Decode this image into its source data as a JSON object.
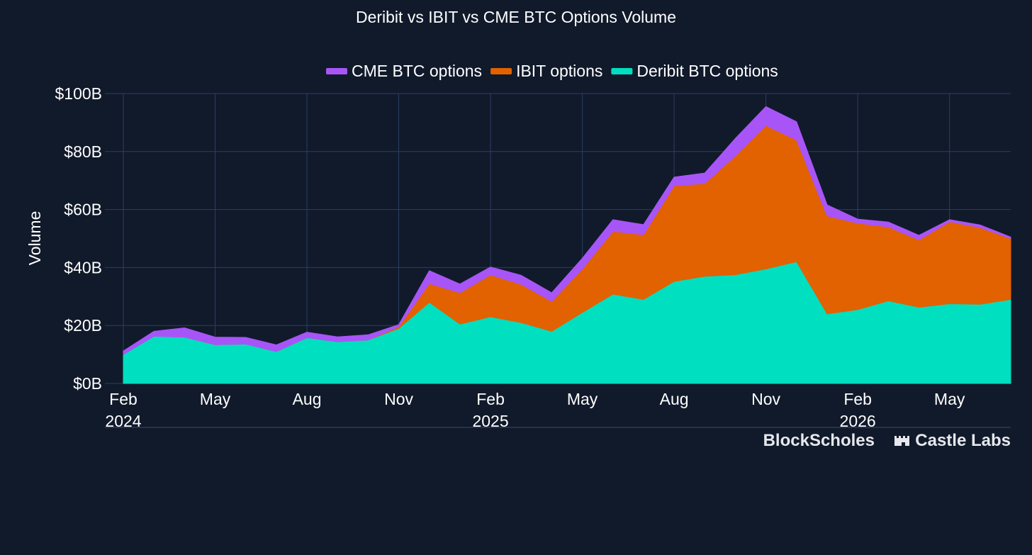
{
  "chart_data": {
    "type": "area",
    "stacked": true,
    "title": "Deribit vs IBIT vs CME BTC Options Volume",
    "ylabel": "Volume",
    "xlabel": "",
    "ylim": [
      0,
      100
    ],
    "y_unit": "B USD",
    "y_ticks": [
      0,
      20,
      40,
      60,
      80,
      100
    ],
    "y_tick_labels": [
      "$0B",
      "$20B",
      "$40B",
      "$60B",
      "$80B",
      "$100B"
    ],
    "x_ticks": [
      {
        "x": "2024-02",
        "label": "Feb",
        "year": "2024"
      },
      {
        "x": "2024-05",
        "label": "May",
        "year": ""
      },
      {
        "x": "2024-08",
        "label": "Aug",
        "year": ""
      },
      {
        "x": "2024-11",
        "label": "Nov",
        "year": ""
      },
      {
        "x": "2025-02",
        "label": "Feb",
        "year": "2025"
      },
      {
        "x": "2025-05",
        "label": "May",
        "year": ""
      },
      {
        "x": "2025-08",
        "label": "Aug",
        "year": ""
      },
      {
        "x": "2025-11",
        "label": "Nov",
        "year": ""
      },
      {
        "x": "2026-02",
        "label": "Feb",
        "year": "2026"
      },
      {
        "x": "2026-05",
        "label": "May",
        "year": ""
      }
    ],
    "grid": true,
    "legend_position": "top-center",
    "x": [
      "2024-02",
      "2024-03",
      "2024-04",
      "2024-05",
      "2024-06",
      "2024-07",
      "2024-08",
      "2024-09",
      "2024-10",
      "2024-11",
      "2024-12",
      "2025-01",
      "2025-02",
      "2025-03",
      "2025-04",
      "2025-05",
      "2025-06",
      "2025-07",
      "2025-08",
      "2025-09",
      "2025-10",
      "2025-11",
      "2025-12",
      "2026-01",
      "2026-02",
      "2026-03",
      "2026-04",
      "2026-05",
      "2026-06",
      "2026-07"
    ],
    "series": [
      {
        "name": "Deribit BTC options",
        "color": "#00dfbf",
        "values": [
          10,
          16.3,
          16,
          13.4,
          13.6,
          11,
          15.8,
          14.4,
          15,
          19,
          28,
          20.5,
          23,
          21,
          18,
          24.5,
          30.8,
          29,
          35.2,
          37,
          37.5,
          39.5,
          42,
          24,
          25.5,
          28.5,
          26.3,
          27.5,
          27.3,
          29
        ]
      },
      {
        "name": "IBIT options",
        "color": "#e26100",
        "values": [
          0,
          0,
          0,
          0,
          0,
          0,
          0,
          0,
          0,
          0.6,
          6.5,
          10.8,
          14.5,
          13.2,
          10.3,
          15,
          21.7,
          22.3,
          33,
          32,
          41,
          49.5,
          42,
          33.8,
          29.8,
          25.5,
          23.2,
          28.3,
          26.5,
          21
        ]
      },
      {
        "name": "CME BTC options",
        "color": "#a855f7",
        "values": [
          1.2,
          1.7,
          3.2,
          2.6,
          2.3,
          2.3,
          1.9,
          1.7,
          1.8,
          0.7,
          4.4,
          3,
          2.7,
          3.1,
          3,
          3.7,
          4,
          3.5,
          3,
          3.6,
          6,
          6.5,
          6.3,
          3.8,
          1.4,
          1.7,
          1.6,
          0.7,
          0.9,
          0.5
        ]
      }
    ],
    "legend_order": [
      "CME BTC options",
      "IBIT options",
      "Deribit BTC options"
    ]
  },
  "branding": {
    "logo1": "BlockScholes",
    "logo2": "Castle Labs"
  }
}
